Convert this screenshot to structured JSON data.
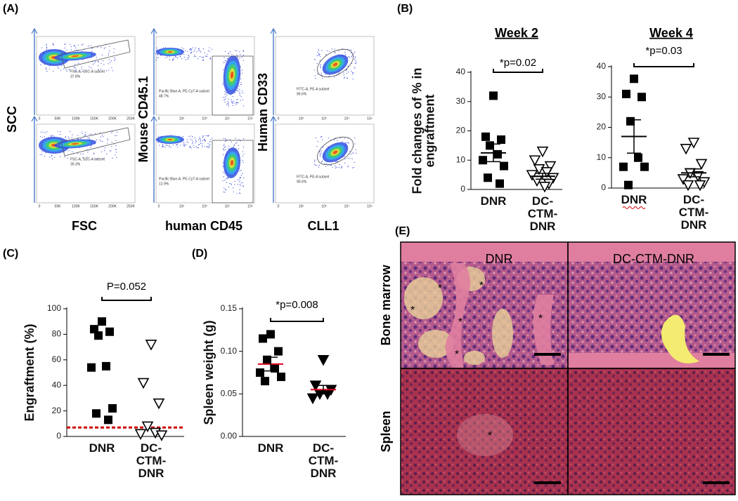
{
  "panels": {
    "a": "(A)",
    "b": "(B)",
    "c": "(C)",
    "d": "(D)",
    "e": "(E)"
  },
  "flow_cytometry": {
    "y_labels": [
      "SCC",
      "Mouse CD45.1",
      "Human CD33"
    ],
    "x_labels": [
      "FSC",
      "human CD45",
      "CLL1"
    ],
    "x_ticks": [
      [
        "0",
        "50K",
        "100K",
        "150K",
        "200K",
        "250K"
      ],
      [
        "0",
        "10²",
        "10³",
        "10⁴",
        "10⁵"
      ],
      [
        "0",
        "10²",
        "10³",
        "10⁴",
        "10⁵"
      ]
    ],
    "plots": [
      {
        "gate": "FSC-A, SSC-A subset",
        "percent": "37.8%"
      },
      {
        "gate": "Pacific Blue-A, PE-CyT-A subset",
        "percent": "48.7%"
      },
      {
        "gate": "FITC-A, PE-A subset",
        "percent": "96.6%"
      },
      {
        "gate": "FSC-A, SSC-A subset",
        "percent": "30.3%"
      },
      {
        "gate": "Pacific Blue-A, PE-CyT-A subset",
        "percent": "12.9%"
      },
      {
        "gate": "FITC-A, PE-A subset",
        "percent": "90.6%"
      }
    ]
  },
  "chart_data": [
    {
      "type": "dot",
      "title": "Week 2",
      "ylabel": "Fold changes of % in engraftment",
      "categories": [
        "DNR",
        "DC-CTM-DNR"
      ],
      "groups": [
        {
          "values": [
            32,
            18,
            17,
            15,
            12,
            10,
            8,
            4,
            2
          ],
          "mean": 12.5,
          "sem": 3,
          "marker": "square",
          "mean_color": "#000000"
        },
        {
          "values": [
            13,
            10,
            8,
            7,
            6,
            5,
            4,
            3,
            2,
            1
          ],
          "mean": 4.5,
          "sem": 1,
          "marker": "triangle-open",
          "mean_color": "#000000"
        }
      ],
      "annotation": "*p=0.02",
      "ylim": [
        0,
        40
      ],
      "yticks": [
        0,
        10,
        20,
        30,
        40
      ]
    },
    {
      "type": "dot",
      "title": "Week 4",
      "categories": [
        "DNR",
        "DC-CTM-DNR"
      ],
      "groups": [
        {
          "values": [
            36,
            31,
            30,
            22,
            10,
            7,
            7,
            1
          ],
          "mean": 17,
          "sem": 5.5,
          "marker": "square",
          "mean_color": "#000000"
        },
        {
          "values": [
            15,
            13,
            8,
            5,
            4,
            3,
            2,
            1,
            1
          ],
          "mean": 5,
          "sem": 1.3,
          "marker": "triangle-open",
          "mean_color": "#000000"
        }
      ],
      "annotation": "*p=0.03",
      "ylim": [
        0,
        40
      ],
      "yticks": [
        0,
        10,
        20,
        30,
        40
      ]
    },
    {
      "type": "dot",
      "ylabel": "Engraftment (%)",
      "categories": [
        "DNR",
        "DC-CTM-DNR"
      ],
      "groups": [
        {
          "values": [
            90,
            84,
            82,
            79,
            55,
            54,
            22,
            18,
            13
          ],
          "marker": "square"
        },
        {
          "values": [
            72,
            42,
            26,
            8,
            3,
            2,
            1
          ],
          "marker": "triangle-open"
        }
      ],
      "annotation": "P=0.052",
      "threshold": 7,
      "threshold_color": "#cc0000",
      "ylim": [
        0,
        100
      ],
      "yticks": [
        0,
        20,
        40,
        60,
        80,
        100
      ]
    },
    {
      "type": "dot",
      "ylabel": "Spleen weight (g)",
      "categories": [
        "DNR",
        "DC-CTM-DNR"
      ],
      "groups": [
        {
          "values": [
            0.12,
            0.115,
            0.1,
            0.09,
            0.08,
            0.075,
            0.07,
            0.065
          ],
          "mean": 0.085,
          "sem": 0.008,
          "marker": "square",
          "mean_color": "#e0001b"
        },
        {
          "values": [
            0.09,
            0.06,
            0.055,
            0.05,
            0.05,
            0.045
          ],
          "mean": 0.055,
          "sem": 0.005,
          "marker": "triangle-filled",
          "mean_color": "#e0001b"
        }
      ],
      "annotation": "*p=0.008",
      "ylim": [
        0,
        0.15
      ],
      "yticks": [
        {
          "value": 0,
          "label": "0.00"
        },
        {
          "value": 0.05,
          "label": "0.05"
        },
        {
          "value": 0.1,
          "label": "0.10"
        },
        {
          "value": 0.15,
          "label": "0.15"
        }
      ]
    }
  ],
  "histology": {
    "columns": [
      "DNR",
      "DC-CTM-DNR"
    ],
    "rows": [
      "Bone marrow",
      "Spleen"
    ],
    "marker": "*"
  }
}
